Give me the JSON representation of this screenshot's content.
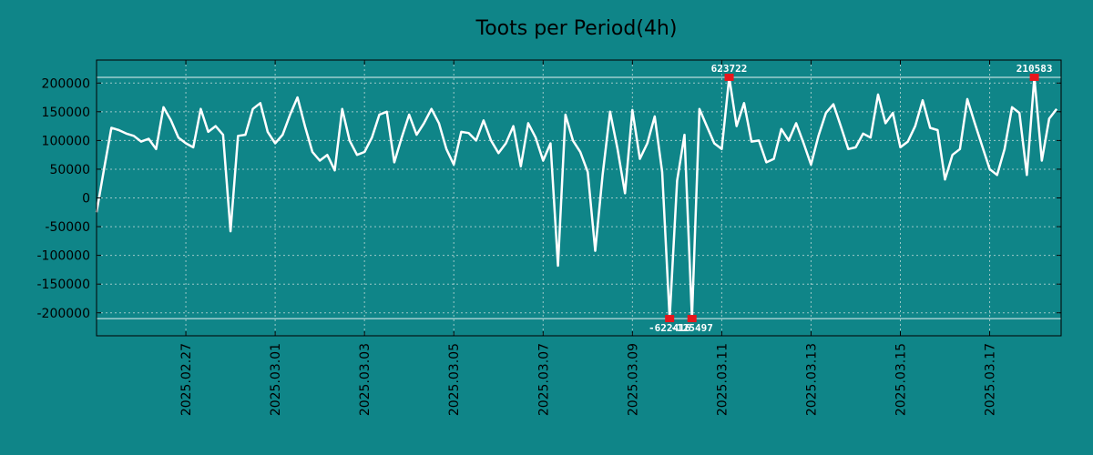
{
  "colors": {
    "background": "#0f8588",
    "line": "#ffffff",
    "marker": "#e8161c",
    "grid": "#9cc8c8",
    "frame": "#000000",
    "limit_line": "#e6f2f2",
    "text": "#000000",
    "annotation": "#ffffff"
  },
  "chart_data": {
    "type": "line",
    "title": "Toots per Period(4h)",
    "xlabel": "",
    "ylabel": "",
    "grid": true,
    "legend": "none",
    "x_start": "2025.02.25 00:00",
    "x_step_hours": 4,
    "x_range_days": [
      0,
      21.6
    ],
    "xlim": [
      "2025.02.25 00:00",
      "2025.03.18 14:24"
    ],
    "ylim": [
      -240000,
      240000
    ],
    "ytick_values": [
      -200000,
      -150000,
      -100000,
      -50000,
      0,
      50000,
      100000,
      150000,
      200000
    ],
    "ytick_labels": [
      "-200000",
      "-150000",
      "-100000",
      "-50000",
      "0",
      "50000",
      "100000",
      "150000",
      "200000"
    ],
    "xtick_days": [
      2,
      4,
      6,
      8,
      10,
      12,
      14,
      16,
      18,
      20
    ],
    "xtick_labels": [
      "2025.02.27",
      "2025.03.01",
      "2025.03.03",
      "2025.03.05",
      "2025.03.07",
      "2025.03.09",
      "2025.03.11",
      "2025.03.13",
      "2025.03.15",
      "2025.03.17"
    ],
    "limit_lines": [
      210000,
      -210000
    ],
    "series": [
      {
        "name": "Toots",
        "values": [
          -25000,
          50000,
          122000,
          118000,
          112000,
          108000,
          98000,
          103000,
          85000,
          158000,
          135000,
          105000,
          95000,
          88000,
          155000,
          115000,
          125000,
          110000,
          -58000,
          108000,
          110000,
          155000,
          165000,
          115000,
          95000,
          110000,
          145000,
          175000,
          125000,
          80000,
          65000,
          75000,
          48000,
          155000,
          100000,
          75000,
          80000,
          105000,
          145000,
          150000,
          62000,
          105000,
          145000,
          110000,
          130000,
          155000,
          130000,
          85000,
          58000,
          115000,
          113000,
          100000,
          135000,
          100000,
          78000,
          95000,
          125000,
          55000,
          130000,
          105000,
          65000,
          95000,
          -118000,
          145000,
          100000,
          80000,
          45000,
          -92000,
          40000,
          150000,
          85000,
          8000,
          153000,
          68000,
          95000,
          142000,
          45000,
          -210000,
          30000,
          110000,
          -210000,
          155000,
          125000,
          95000,
          85000,
          210000,
          125000,
          165000,
          98000,
          100000,
          62000,
          68000,
          120000,
          100000,
          130000,
          95000,
          58000,
          108000,
          148000,
          163000,
          125000,
          85000,
          88000,
          112000,
          105000,
          180000,
          130000,
          148000,
          88000,
          98000,
          125000,
          170000,
          122000,
          118000,
          32000,
          75000,
          85000,
          172000,
          130000,
          90000,
          50000,
          40000,
          85000,
          158000,
          148000,
          40000,
          210000,
          65000,
          138000,
          155000
        ]
      }
    ],
    "annotations": [
      {
        "index": 77,
        "value": -210000,
        "label": "-622416",
        "position": "below"
      },
      {
        "index": 80,
        "value": -210000,
        "label": "-125497",
        "position": "below"
      },
      {
        "index": 85,
        "value": 210000,
        "label": "623722",
        "position": "above"
      },
      {
        "index": 126,
        "value": 210000,
        "label": "210583",
        "position": "above"
      }
    ]
  }
}
